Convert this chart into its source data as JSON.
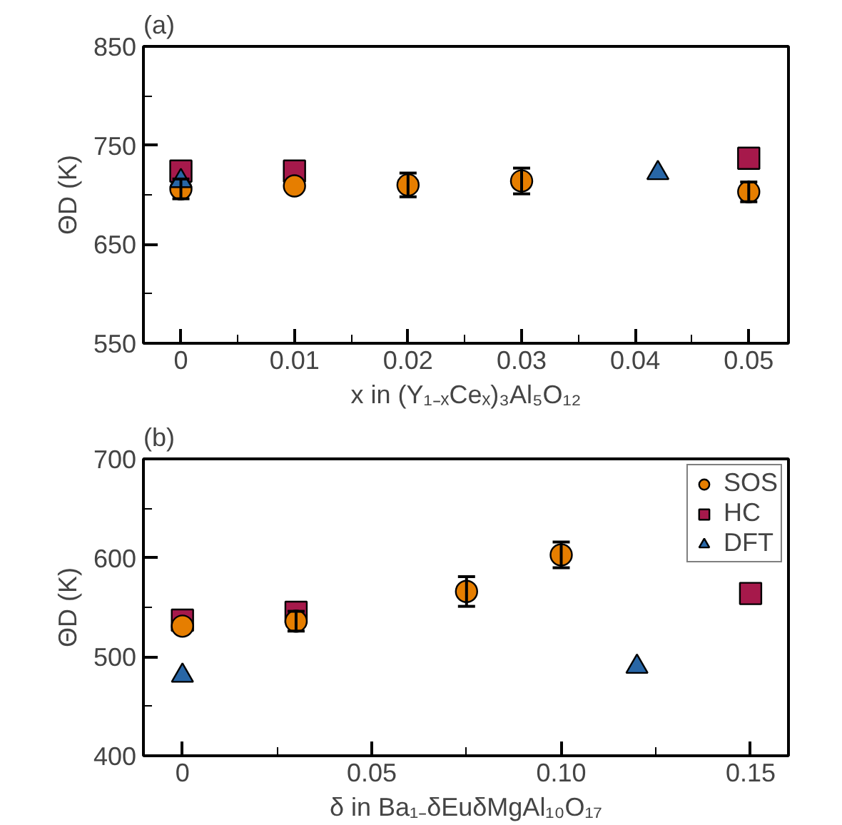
{
  "chart_data": [
    {
      "type": "scatter",
      "title": "(a)",
      "xlabel": "x in (Y₁₋ₓCeₓ)₃Al₅O₁₂",
      "ylabel": "ΘD (K)",
      "xlim": [
        -0.0033,
        0.0535
      ],
      "ylim": [
        550,
        850
      ],
      "xticks": [
        0,
        0.01,
        0.02,
        0.03,
        0.04,
        0.05
      ],
      "yticks": [
        550,
        650,
        750,
        850
      ],
      "grid": false,
      "series": [
        {
          "color": "#a6194b",
          "marker": "square",
          "x": [
            0,
            0.01,
            0.05
          ],
          "values": [
            724,
            724,
            737
          ]
        },
        {
          "color": "#e67e00",
          "marker": "circle",
          "x": [
            0,
            0.01,
            0.02,
            0.03,
            0.05
          ],
          "values": [
            706,
            709,
            710,
            714,
            703
          ],
          "errors": [
            10,
            null,
            12,
            13,
            10
          ]
        },
        {
          "color": "#2866a6",
          "marker": "triangle",
          "x": [
            0,
            0.042
          ],
          "values": [
            714,
            722
          ]
        }
      ]
    },
    {
      "type": "scatter",
      "title": "(b)",
      "xlabel": "δ in Ba₁₋δEuδMgAl₁₀O₁₇",
      "ylabel": "ΘD (K)",
      "xlim": [
        -0.0103,
        0.16
      ],
      "ylim": [
        400,
        700
      ],
      "xticks": [
        0,
        0.05,
        {
          "value": 0.1,
          "label": "0.10"
        },
        0.15
      ],
      "yticks": [
        400,
        500,
        600,
        700
      ],
      "grid": false,
      "legend": "top right",
      "series": [
        {
          "name": "SOS",
          "color": "#e67e00",
          "marker": "circle",
          "x": [
            0,
            0.03,
            0.075,
            0.1
          ],
          "values": [
            531,
            536,
            566,
            603
          ],
          "errors": [
            null,
            10,
            15,
            13
          ]
        },
        {
          "name": "HC",
          "color": "#a6194b",
          "marker": "square",
          "x": [
            0,
            0.03,
            0.15
          ],
          "values": [
            537,
            545,
            564
          ]
        },
        {
          "name": "DFT",
          "color": "#2866a6",
          "marker": "triangle",
          "x": [
            0,
            0.12
          ],
          "values": [
            481,
            490
          ]
        }
      ]
    }
  ]
}
